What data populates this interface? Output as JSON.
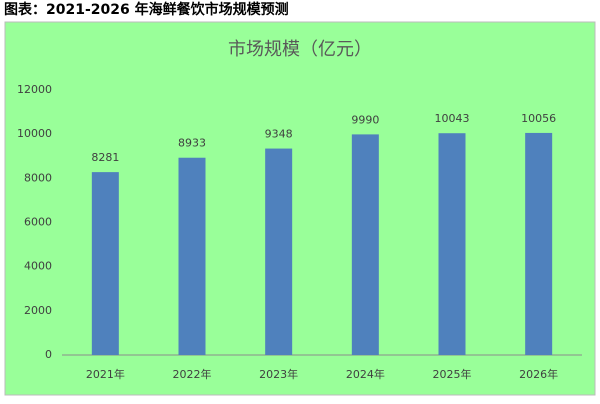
{
  "page_title": "图表：2021-2026 年海鲜餐饮市场规模预测",
  "chart_data": {
    "type": "bar",
    "title": "市场规模（亿元）",
    "categories": [
      "2021年",
      "2022年",
      "2023年",
      "2024年",
      "2025年",
      "2026年"
    ],
    "values": [
      8281,
      8933,
      9348,
      9990,
      10043,
      10056
    ],
    "color": "#4f81bd",
    "background": "#99ff99",
    "ylim": [
      0,
      12000
    ],
    "yticks": [
      0,
      2000,
      4000,
      6000,
      8000,
      10000,
      12000
    ],
    "grid": false,
    "data_labels": true
  }
}
